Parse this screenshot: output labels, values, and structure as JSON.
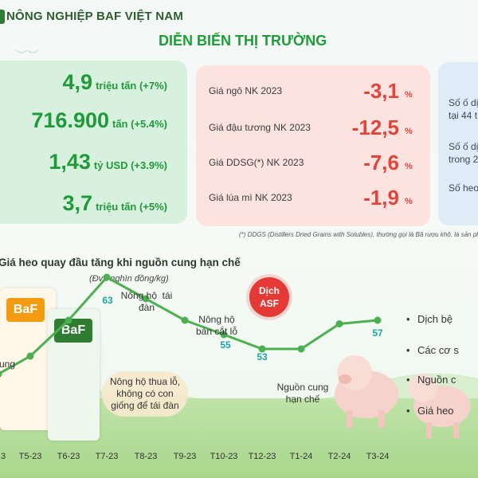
{
  "header": {
    "brand": "NÔNG NGHIỆP BAF VIỆT NAM",
    "headline": "DIỄN BIẾN THỊ TRƯỜNG"
  },
  "stats": [
    {
      "value": "4,9",
      "detail": "triệu tấn (+7%)"
    },
    {
      "value": "716.900",
      "detail": "tấn (+5.4%)"
    },
    {
      "value": "1,43",
      "detail": "tỷ USD (+3.9%)"
    },
    {
      "value": "3,7",
      "detail": "triệu tấn (+5%)"
    }
  ],
  "prices": [
    {
      "label": "Giá ngô NK 2023",
      "value": "-3,1",
      "unit": "%"
    },
    {
      "label": "Giá đậu tương NK 2023",
      "value": "-12,5",
      "unit": "%"
    },
    {
      "label": "Giá DDSG(*) NK 2023",
      "value": "-7,6",
      "unit": "%"
    },
    {
      "label": "Giá lúa mì NK 2023",
      "value": "-1,9",
      "unit": "%"
    }
  ],
  "right_panel": {
    "lines": [
      "Số ố dị",
      "tại 44 t",
      "Số ố dị",
      "trong 2",
      "Số heo"
    ]
  },
  "footnote": "(*) DDGS (Distillers Dried Grains with Solubles), thường gọi là Bã rượu khô, là sản phẩ",
  "chart_data": {
    "type": "line",
    "title": "Giá heo quay đầu tăng khi nguồn cung hạn chế",
    "unit_label": "(Đvt: nghìn đồng/kg)",
    "categories": [
      "3",
      "T5-23",
      "T6-23",
      "T7-23",
      "T8-23",
      "T9-23",
      "T10-23",
      "T12-23",
      "T1-24",
      "T2-24",
      "T3-24"
    ],
    "values": [
      49.5,
      52,
      57,
      63,
      60,
      57,
      55,
      53,
      53,
      56.5,
      57
    ],
    "labeled_values": {
      "3": "63",
      "6": "55",
      "7": "53",
      "10": "57"
    },
    "annotations": [
      {
        "text": "Nông hộ  tái\nđàn",
        "anchor": "T7-23"
      },
      {
        "text": "Nông hộ\nbán cắt lỗ",
        "anchor": "T10-23"
      },
      {
        "text": "Nông hộ thua lỗ,\nkhông có con\ngiống để tái đàn",
        "anchor": "T7-23"
      },
      {
        "text": "Nguồn cung\nhạn chế",
        "anchor": "T1-24"
      }
    ],
    "badge": [
      "Dịch",
      "ASF"
    ],
    "partial_labels": [
      "ung"
    ],
    "bullets": [
      "Dịch bệ",
      "Các cơ s",
      "Nguồn c",
      "Giá heo"
    ],
    "line_color": "#4caf50",
    "label_color": "#1fa3a3"
  },
  "product": {
    "brand": "BaF"
  }
}
